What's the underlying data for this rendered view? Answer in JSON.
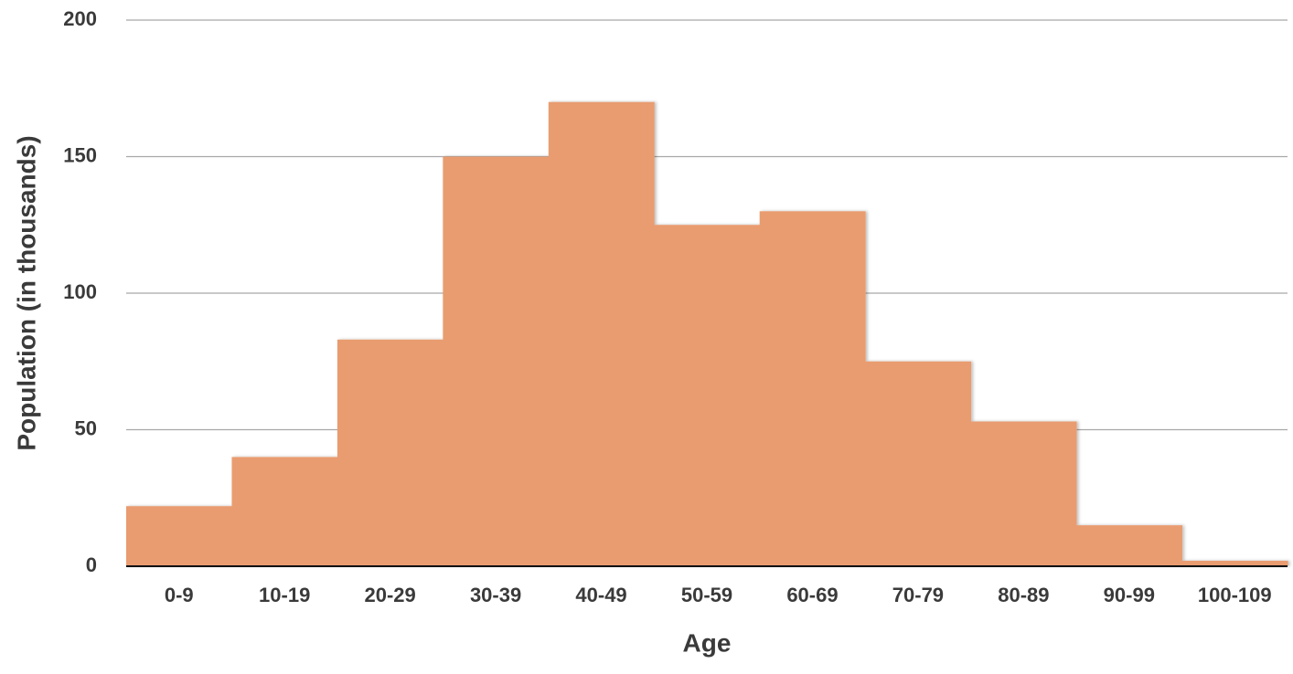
{
  "chart_data": {
    "type": "bar",
    "xlabel": "Age",
    "ylabel": "Population (in thousands)",
    "categories": [
      "0-9",
      "10-19",
      "20-29",
      "30-39",
      "40-49",
      "50-59",
      "60-69",
      "70-79",
      "80-89",
      "90-99",
      "100-109"
    ],
    "values": [
      22,
      40,
      83,
      150,
      170,
      125,
      130,
      75,
      53,
      15,
      2
    ],
    "color": "#e99c6f",
    "ylim": [
      0,
      200
    ],
    "yticks": [
      0,
      50,
      100,
      150,
      200
    ],
    "grid": true
  }
}
